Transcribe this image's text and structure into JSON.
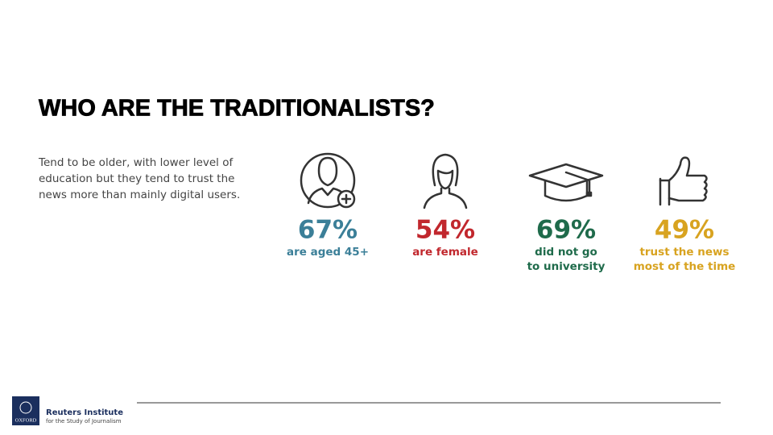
{
  "title": "WHO ARE THE TRADITIONALISTS?",
  "description": [
    "Tend to be older, with lower level of",
    "education but they tend to trust the",
    "news more than mainly digital users."
  ],
  "stats": [
    {
      "value": "67%",
      "caption": [
        "are aged 45+"
      ],
      "color": "#3b7f98"
    },
    {
      "value": "54%",
      "caption": [
        "are female"
      ],
      "color": "#c1272d"
    },
    {
      "value": "69%",
      "caption": [
        "did not go",
        "to university"
      ],
      "color": "#1f6b4b"
    },
    {
      "value": "49%",
      "caption": [
        "trust the news",
        "most of the time"
      ],
      "color": "#d8a320"
    }
  ],
  "footer": {
    "logo_text": "OXFORD",
    "institute": "Reuters Institute",
    "subtitle": "for the Study of Journalism"
  }
}
